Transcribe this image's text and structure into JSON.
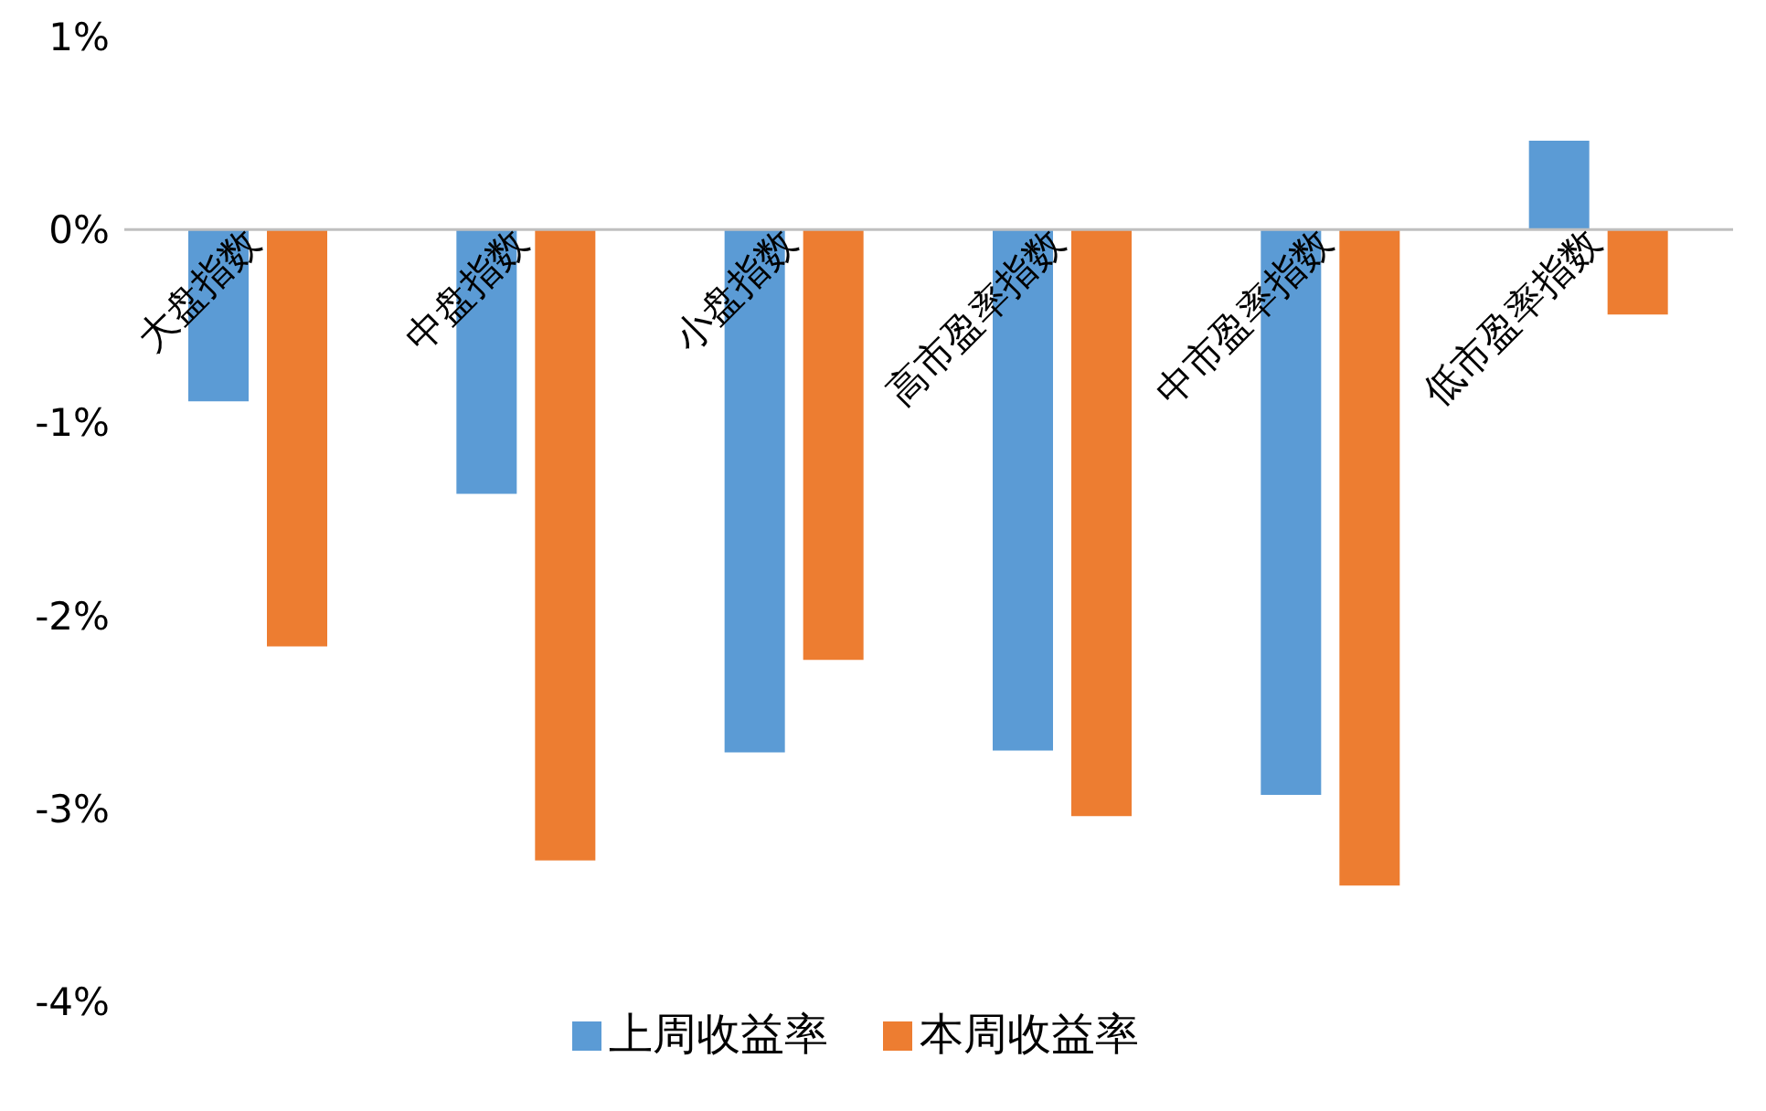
{
  "chart_data": {
    "type": "bar",
    "categories": [
      "大盘指数",
      "中盘指数",
      "小盘指数",
      "高市盈率指数",
      "中市盈率指数",
      "低市盈率指数"
    ],
    "series": [
      {
        "name": "上周收益率",
        "color": "#5b9bd5",
        "values": [
          -0.89,
          -1.37,
          -2.71,
          -2.7,
          -2.93,
          0.46
        ]
      },
      {
        "name": "本周收益率",
        "color": "#ed7d31",
        "values": [
          -2.16,
          -3.27,
          -2.23,
          -3.04,
          -3.4,
          -0.44
        ]
      }
    ],
    "ylim": [
      -4,
      1
    ],
    "yticks": [
      {
        "value": -4,
        "label": "-4%"
      },
      {
        "value": -3,
        "label": "-3%"
      },
      {
        "value": -2,
        "label": "-2%"
      },
      {
        "value": -1,
        "label": "-1%"
      },
      {
        "value": 0,
        "label": "0%"
      },
      {
        "value": 1,
        "label": "1%"
      }
    ],
    "legend": "bottom"
  }
}
